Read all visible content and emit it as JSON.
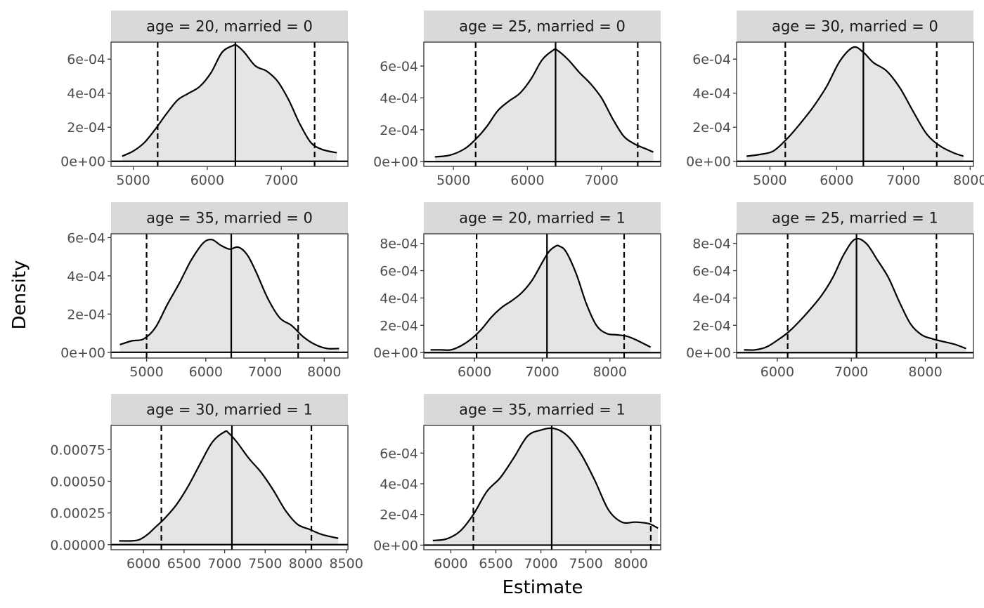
{
  "chart_data": {
    "type": "density-facets",
    "xlabel": "Estimate",
    "ylabel": "Density",
    "fill_color": "#e5e5e5",
    "strip_color": "#d9d9d9",
    "line_color": "#000000",
    "panels": [
      {
        "label": "age = 20, married = 0",
        "x_ticks": [
          5000,
          6000,
          7000
        ],
        "x_tick_labels": [
          "5000",
          "6000",
          "7000"
        ],
        "xlim": [
          4700,
          7900
        ],
        "y_ticks": [
          0,
          0.0002,
          0.0004,
          0.0006
        ],
        "y_tick_labels": [
          "0e+00",
          "2e-04",
          "4e-04",
          "6e-04"
        ],
        "ylim": [
          -3e-05,
          0.0007
        ],
        "estimate": 6380,
        "ci": [
          5330,
          7450
        ],
        "x": [
          4850,
          5000,
          5150,
          5300,
          5450,
          5600,
          5750,
          5900,
          6050,
          6200,
          6350,
          6400,
          6500,
          6650,
          6800,
          6950,
          7100,
          7250,
          7400,
          7550,
          7750
        ],
        "y": [
          3e-05,
          6e-05,
          0.00011,
          0.00019,
          0.00028,
          0.00036,
          0.0004,
          0.00044,
          0.00052,
          0.00064,
          0.00068,
          0.00068,
          0.00064,
          0.00056,
          0.00053,
          0.00047,
          0.00036,
          0.00022,
          0.00011,
          7e-05,
          5e-05
        ]
      },
      {
        "label": "age = 25, married = 0",
        "x_ticks": [
          5000,
          6000,
          7000
        ],
        "x_tick_labels": [
          "5000",
          "6000",
          "7000"
        ],
        "xlim": [
          4600,
          7800
        ],
        "y_ticks": [
          0,
          0.0002,
          0.0004,
          0.0006
        ],
        "y_tick_labels": [
          "0e+00",
          "2e-04",
          "4e-04",
          "6e-04"
        ],
        "ylim": [
          -3e-05,
          0.00075
        ],
        "estimate": 6380,
        "ci": [
          5300,
          7490
        ],
        "x": [
          4750,
          4950,
          5150,
          5300,
          5450,
          5600,
          5750,
          5900,
          6050,
          6200,
          6350,
          6400,
          6550,
          6700,
          6850,
          7000,
          7150,
          7300,
          7450,
          7600,
          7700
        ],
        "y": [
          3e-05,
          4e-05,
          8e-05,
          0.00014,
          0.00022,
          0.00032,
          0.00038,
          0.00043,
          0.00052,
          0.00064,
          0.0007,
          0.0007,
          0.00064,
          0.00056,
          0.00049,
          0.0004,
          0.00027,
          0.00016,
          0.00011,
          8e-05,
          6e-05
        ]
      },
      {
        "label": "age = 30, married = 0",
        "x_ticks": [
          5000,
          6000,
          7000,
          8000
        ],
        "x_tick_labels": [
          "5000",
          "6000",
          "7000",
          "8000"
        ],
        "xlim": [
          4500,
          8050
        ],
        "y_ticks": [
          0,
          0.0002,
          0.0004,
          0.0006
        ],
        "y_tick_labels": [
          "0e+00",
          "2e-04",
          "4e-04",
          "6e-04"
        ],
        "ylim": [
          -3e-05,
          0.0007
        ],
        "estimate": 6400,
        "ci": [
          5230,
          7500
        ],
        "x": [
          4650,
          4850,
          5050,
          5250,
          5450,
          5650,
          5850,
          6050,
          6250,
          6400,
          6550,
          6750,
          6950,
          7150,
          7350,
          7550,
          7750,
          7900
        ],
        "y": [
          3e-05,
          4e-05,
          6e-05,
          0.00013,
          0.00022,
          0.00032,
          0.00044,
          0.00059,
          0.00067,
          0.00064,
          0.00058,
          0.00053,
          0.00043,
          0.00029,
          0.00016,
          9e-05,
          5e-05,
          3e-05
        ]
      },
      {
        "label": "age = 35, married = 0",
        "x_ticks": [
          5000,
          6000,
          7000,
          8000
        ],
        "x_tick_labels": [
          "5000",
          "6000",
          "7000",
          "8000"
        ],
        "xlim": [
          4400,
          8400
        ],
        "y_ticks": [
          0,
          0.0002,
          0.0004,
          0.0006
        ],
        "y_tick_labels": [
          "0e+00",
          "2e-04",
          "4e-04",
          "6e-04"
        ],
        "ylim": [
          -3e-05,
          0.00062
        ],
        "estimate": 6430,
        "ci": [
          5000,
          7560
        ],
        "x": [
          4550,
          4750,
          4950,
          5150,
          5350,
          5550,
          5750,
          5950,
          6100,
          6250,
          6400,
          6550,
          6700,
          6850,
          7050,
          7250,
          7450,
          7650,
          7850,
          8050,
          8250
        ],
        "y": [
          4e-05,
          6e-05,
          7e-05,
          0.00013,
          0.00025,
          0.00036,
          0.00048,
          0.00057,
          0.00059,
          0.00056,
          0.00054,
          0.00055,
          0.00051,
          0.00042,
          0.00028,
          0.00018,
          0.00014,
          8e-05,
          4e-05,
          2e-05,
          2e-05
        ]
      },
      {
        "label": "age = 20, married = 1",
        "x_ticks": [
          6000,
          7000,
          8000
        ],
        "x_tick_labels": [
          "6000",
          "7000",
          "8000"
        ],
        "xlim": [
          5250,
          8750
        ],
        "y_ticks": [
          0,
          0.0002,
          0.0004,
          0.0006,
          0.0008
        ],
        "y_tick_labels": [
          "0e+00",
          "2e-04",
          "4e-04",
          "6e-04",
          "8e-04"
        ],
        "ylim": [
          -4e-05,
          0.00087
        ],
        "estimate": 7070,
        "ci": [
          6030,
          8210
        ],
        "x": [
          5350,
          5500,
          5650,
          5800,
          5950,
          6100,
          6250,
          6400,
          6550,
          6700,
          6850,
          7000,
          7100,
          7200,
          7250,
          7350,
          7500,
          7650,
          7800,
          7950,
          8100,
          8250,
          8400,
          8600
        ],
        "y": [
          2e-05,
          2e-05,
          2e-05,
          5e-05,
          0.0001,
          0.00017,
          0.00026,
          0.00033,
          0.00038,
          0.00044,
          0.00053,
          0.00066,
          0.00074,
          0.00078,
          0.00078,
          0.00074,
          0.00058,
          0.00036,
          0.0002,
          0.00014,
          0.00013,
          0.00012,
          9e-05,
          4e-05
        ]
      },
      {
        "label": "age = 25, married = 1",
        "x_ticks": [
          6000,
          7000,
          8000
        ],
        "x_tick_labels": [
          "6000",
          "7000",
          "8000"
        ],
        "xlim": [
          5450,
          8650
        ],
        "y_ticks": [
          0,
          0.0002,
          0.0004,
          0.0006,
          0.0008
        ],
        "y_tick_labels": [
          "0e+00",
          "2e-04",
          "4e-04",
          "6e-04",
          "8e-04"
        ],
        "ylim": [
          -4e-05,
          0.00087
        ],
        "estimate": 7070,
        "ci": [
          6140,
          8150
        ],
        "x": [
          5550,
          5700,
          5850,
          6000,
          6150,
          6300,
          6450,
          6600,
          6750,
          6900,
          7050,
          7200,
          7350,
          7500,
          7650,
          7800,
          7950,
          8100,
          8250,
          8400,
          8550
        ],
        "y": [
          2e-05,
          2e-05,
          4e-05,
          9e-05,
          0.00015,
          0.00023,
          0.00032,
          0.00042,
          0.00055,
          0.00072,
          0.00083,
          0.0008,
          0.00068,
          0.00055,
          0.00037,
          0.00021,
          0.00013,
          0.0001,
          8e-05,
          6e-05,
          3e-05
        ]
      },
      {
        "label": "age = 30, married = 1",
        "x_ticks": [
          6000,
          6500,
          7000,
          7500,
          8000,
          8500
        ],
        "x_tick_labels": [
          "6000",
          "6500",
          "7000",
          "7500",
          "8000",
          "8500"
        ],
        "xlim": [
          5600,
          8520
        ],
        "y_ticks": [
          0,
          0.00025,
          0.0005,
          0.00075
        ],
        "y_tick_labels": [
          "0.00000",
          "0.00025",
          "0.00050",
          "0.00075"
        ],
        "ylim": [
          -4e-05,
          0.00094
        ],
        "estimate": 7090,
        "ci": [
          6220,
          8070
        ],
        "x": [
          5700,
          5850,
          5950,
          6050,
          6150,
          6250,
          6400,
          6550,
          6700,
          6850,
          7000,
          7050,
          7150,
          7300,
          7450,
          7600,
          7750,
          7900,
          8050,
          8200,
          8400
        ],
        "y": [
          3e-05,
          3e-05,
          4e-05,
          8e-05,
          0.00014,
          0.0002,
          0.00031,
          0.00046,
          0.00064,
          0.00081,
          0.00089,
          0.00088,
          0.00081,
          0.00068,
          0.00057,
          0.00043,
          0.00027,
          0.00016,
          0.00012,
          8e-05,
          5e-05
        ]
      },
      {
        "label": "age = 35, married = 1",
        "x_ticks": [
          6000,
          6500,
          7000,
          7500,
          8000
        ],
        "x_tick_labels": [
          "6000",
          "6500",
          "7000",
          "7500",
          "8000"
        ],
        "xlim": [
          5700,
          8330
        ],
        "y_ticks": [
          0,
          0.0002,
          0.0004,
          0.0006
        ],
        "y_tick_labels": [
          "0e+00",
          "2e-04",
          "4e-04",
          "6e-04"
        ],
        "ylim": [
          -3e-05,
          0.00078
        ],
        "estimate": 7120,
        "ci": [
          6250,
          8220
        ],
        "x": [
          5800,
          5950,
          6100,
          6250,
          6400,
          6550,
          6700,
          6850,
          7000,
          7150,
          7300,
          7450,
          7600,
          7750,
          7900,
          8050,
          8200,
          8300
        ],
        "y": [
          3e-05,
          4e-05,
          9e-05,
          0.0002,
          0.00035,
          0.00044,
          0.00057,
          0.00071,
          0.00075,
          0.00076,
          0.00071,
          0.00059,
          0.00042,
          0.00023,
          0.00015,
          0.00015,
          0.00014,
          0.00011
        ]
      }
    ]
  }
}
